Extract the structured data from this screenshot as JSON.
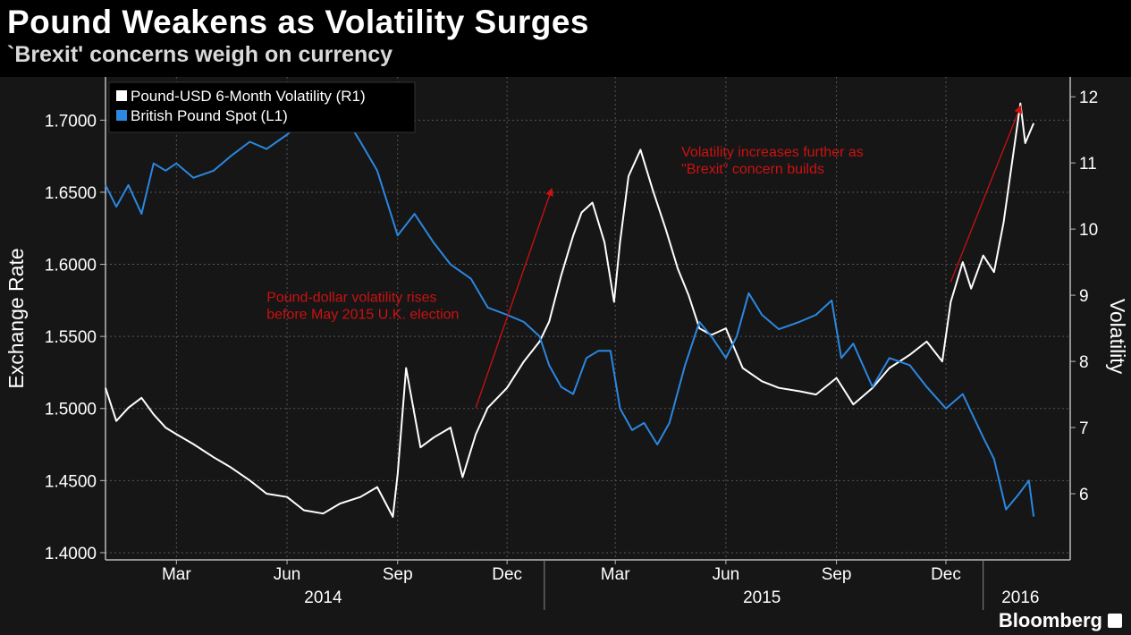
{
  "title": "Pound Weakens as Volatility Surges",
  "subtitle": "`Brexit' concerns weigh on currency",
  "brand": "Bloomberg",
  "colors": {
    "background": "#000000",
    "plot_background": "#161616",
    "volatility_line": "#ffffff",
    "pound_line": "#2b87e0",
    "annotation": "#cc1111",
    "axis_text": "#ffffff",
    "grid": "#555555"
  },
  "chart_data": {
    "type": "line",
    "legend_position": "top-left",
    "grid": true,
    "x_axis": {
      "start": "2014-01-01",
      "end": "2016-02-29",
      "tick_labels": [
        "Mar",
        "Jun",
        "Sep",
        "Dec",
        "Mar",
        "Jun",
        "Sep",
        "Dec"
      ],
      "tick_dates": [
        "2014-03-01",
        "2014-06-01",
        "2014-09-01",
        "2014-12-01",
        "2015-03-01",
        "2015-06-01",
        "2015-09-01",
        "2015-12-01"
      ],
      "year_labels": [
        "2014",
        "2015",
        "2016"
      ],
      "year_dates": [
        "2014-07-01",
        "2015-07-01",
        "2016-02-01"
      ],
      "year_dividers": [
        "2015-01-01",
        "2016-01-01"
      ]
    },
    "left_axis": {
      "label": "Exchange Rate",
      "ylim": [
        1.395,
        1.73
      ],
      "ticks": [
        1.4,
        1.45,
        1.5,
        1.55,
        1.6,
        1.65,
        1.7
      ],
      "tick_labels": [
        "1.4000",
        "1.4500",
        "1.5000",
        "1.5500",
        "1.6000",
        "1.6500",
        "1.7000"
      ]
    },
    "right_axis": {
      "label": "Volatility",
      "ylim": [
        5.0,
        12.3
      ],
      "ticks": [
        6,
        7,
        8,
        9,
        10,
        11,
        12
      ],
      "tick_labels": [
        "6",
        "7",
        "8",
        "9",
        "10",
        "11",
        "12"
      ]
    },
    "series": [
      {
        "name": "Pound-USD 6-Month Volatility (R1)",
        "axis": "right",
        "color": "#ffffff",
        "points": [
          [
            "2014-01-01",
            7.6
          ],
          [
            "2014-01-10",
            7.1
          ],
          [
            "2014-01-20",
            7.3
          ],
          [
            "2014-01-31",
            7.45
          ],
          [
            "2014-02-10",
            7.2
          ],
          [
            "2014-02-20",
            7.0
          ],
          [
            "2014-03-01",
            6.9
          ],
          [
            "2014-03-15",
            6.75
          ],
          [
            "2014-04-01",
            6.55
          ],
          [
            "2014-04-15",
            6.4
          ],
          [
            "2014-05-01",
            6.2
          ],
          [
            "2014-05-15",
            6.0
          ],
          [
            "2014-06-01",
            5.95
          ],
          [
            "2014-06-15",
            5.75
          ],
          [
            "2014-07-01",
            5.7
          ],
          [
            "2014-07-15",
            5.85
          ],
          [
            "2014-08-01",
            5.95
          ],
          [
            "2014-08-15",
            6.1
          ],
          [
            "2014-08-28",
            5.65
          ],
          [
            "2014-09-01",
            6.3
          ],
          [
            "2014-09-08",
            7.9
          ],
          [
            "2014-09-20",
            6.7
          ],
          [
            "2014-10-01",
            6.85
          ],
          [
            "2014-10-15",
            7.0
          ],
          [
            "2014-10-25",
            6.25
          ],
          [
            "2014-11-05",
            6.9
          ],
          [
            "2014-11-15",
            7.3
          ],
          [
            "2014-12-01",
            7.6
          ],
          [
            "2014-12-15",
            8.0
          ],
          [
            "2014-12-28",
            8.3
          ],
          [
            "2015-01-05",
            8.6
          ],
          [
            "2015-01-15",
            9.3
          ],
          [
            "2015-01-25",
            9.9
          ],
          [
            "2015-02-01",
            10.25
          ],
          [
            "2015-02-10",
            10.4
          ],
          [
            "2015-02-20",
            9.8
          ],
          [
            "2015-02-28",
            8.9
          ],
          [
            "2015-03-05",
            9.8
          ],
          [
            "2015-03-12",
            10.8
          ],
          [
            "2015-03-22",
            11.2
          ],
          [
            "2015-04-01",
            10.6
          ],
          [
            "2015-04-12",
            10.0
          ],
          [
            "2015-04-22",
            9.4
          ],
          [
            "2015-05-01",
            9.0
          ],
          [
            "2015-05-10",
            8.5
          ],
          [
            "2015-05-20",
            8.4
          ],
          [
            "2015-06-01",
            8.5
          ],
          [
            "2015-06-15",
            7.9
          ],
          [
            "2015-07-01",
            7.7
          ],
          [
            "2015-07-15",
            7.6
          ],
          [
            "2015-08-01",
            7.55
          ],
          [
            "2015-08-15",
            7.5
          ],
          [
            "2015-09-01",
            7.75
          ],
          [
            "2015-09-15",
            7.35
          ],
          [
            "2015-10-01",
            7.6
          ],
          [
            "2015-10-15",
            7.9
          ],
          [
            "2015-11-01",
            8.1
          ],
          [
            "2015-11-15",
            8.3
          ],
          [
            "2015-11-28",
            8.0
          ],
          [
            "2015-12-05",
            8.9
          ],
          [
            "2015-12-15",
            9.5
          ],
          [
            "2015-12-22",
            9.1
          ],
          [
            "2016-01-01",
            9.6
          ],
          [
            "2016-01-10",
            9.35
          ],
          [
            "2016-01-18",
            10.1
          ],
          [
            "2016-01-25",
            11.0
          ],
          [
            "2016-02-01",
            11.9
          ],
          [
            "2016-02-05",
            11.3
          ],
          [
            "2016-02-12",
            11.6
          ]
        ]
      },
      {
        "name": "British Pound Spot (L1)",
        "axis": "left",
        "color": "#2b87e0",
        "points": [
          [
            "2014-01-01",
            1.655
          ],
          [
            "2014-01-10",
            1.64
          ],
          [
            "2014-01-20",
            1.655
          ],
          [
            "2014-01-31",
            1.635
          ],
          [
            "2014-02-10",
            1.67
          ],
          [
            "2014-02-20",
            1.665
          ],
          [
            "2014-03-01",
            1.67
          ],
          [
            "2014-03-15",
            1.66
          ],
          [
            "2014-04-01",
            1.665
          ],
          [
            "2014-04-15",
            1.675
          ],
          [
            "2014-05-01",
            1.685
          ],
          [
            "2014-05-15",
            1.68
          ],
          [
            "2014-06-01",
            1.69
          ],
          [
            "2014-06-15",
            1.7
          ],
          [
            "2014-07-01",
            1.712
          ],
          [
            "2014-07-15",
            1.708
          ],
          [
            "2014-08-01",
            1.685
          ],
          [
            "2014-08-15",
            1.665
          ],
          [
            "2014-09-01",
            1.62
          ],
          [
            "2014-09-15",
            1.635
          ],
          [
            "2014-10-01",
            1.615
          ],
          [
            "2014-10-15",
            1.6
          ],
          [
            "2014-11-01",
            1.59
          ],
          [
            "2014-11-15",
            1.57
          ],
          [
            "2014-12-01",
            1.565
          ],
          [
            "2014-12-15",
            1.56
          ],
          [
            "2014-12-28",
            1.55
          ],
          [
            "2015-01-05",
            1.53
          ],
          [
            "2015-01-15",
            1.515
          ],
          [
            "2015-01-25",
            1.51
          ],
          [
            "2015-02-05",
            1.535
          ],
          [
            "2015-02-15",
            1.54
          ],
          [
            "2015-02-25",
            1.54
          ],
          [
            "2015-03-05",
            1.5
          ],
          [
            "2015-03-15",
            1.485
          ],
          [
            "2015-03-25",
            1.49
          ],
          [
            "2015-04-05",
            1.475
          ],
          [
            "2015-04-15",
            1.49
          ],
          [
            "2015-04-28",
            1.53
          ],
          [
            "2015-05-10",
            1.56
          ],
          [
            "2015-05-20",
            1.55
          ],
          [
            "2015-06-01",
            1.535
          ],
          [
            "2015-06-10",
            1.55
          ],
          [
            "2015-06-20",
            1.58
          ],
          [
            "2015-07-01",
            1.565
          ],
          [
            "2015-07-15",
            1.555
          ],
          [
            "2015-08-01",
            1.56
          ],
          [
            "2015-08-15",
            1.565
          ],
          [
            "2015-08-28",
            1.575
          ],
          [
            "2015-09-05",
            1.535
          ],
          [
            "2015-09-15",
            1.545
          ],
          [
            "2015-10-01",
            1.515
          ],
          [
            "2015-10-15",
            1.535
          ],
          [
            "2015-11-01",
            1.53
          ],
          [
            "2015-11-15",
            1.515
          ],
          [
            "2015-12-01",
            1.5
          ],
          [
            "2015-12-15",
            1.51
          ],
          [
            "2016-01-01",
            1.48
          ],
          [
            "2016-01-10",
            1.465
          ],
          [
            "2016-01-20",
            1.43
          ],
          [
            "2016-01-30",
            1.44
          ],
          [
            "2016-02-08",
            1.45
          ],
          [
            "2016-02-12",
            1.425
          ]
        ]
      }
    ],
    "annotations": [
      {
        "text_lines": [
          "Pound-dollar volatility rises",
          "before May 2015 U.K. election"
        ],
        "text_anchor": [
          "2014-05-15",
          8.9
        ],
        "arrow_from": [
          "2014-11-05",
          7.3
        ],
        "arrow_to": [
          "2015-01-07",
          10.6
        ]
      },
      {
        "text_lines": [
          "Volatility increases further as",
          "\"Brexit\" concern builds"
        ],
        "text_anchor": [
          "2015-04-25",
          11.1
        ],
        "arrow_from": [
          "2015-12-05",
          9.2
        ],
        "arrow_to": [
          "2016-02-01",
          11.85
        ]
      }
    ]
  }
}
